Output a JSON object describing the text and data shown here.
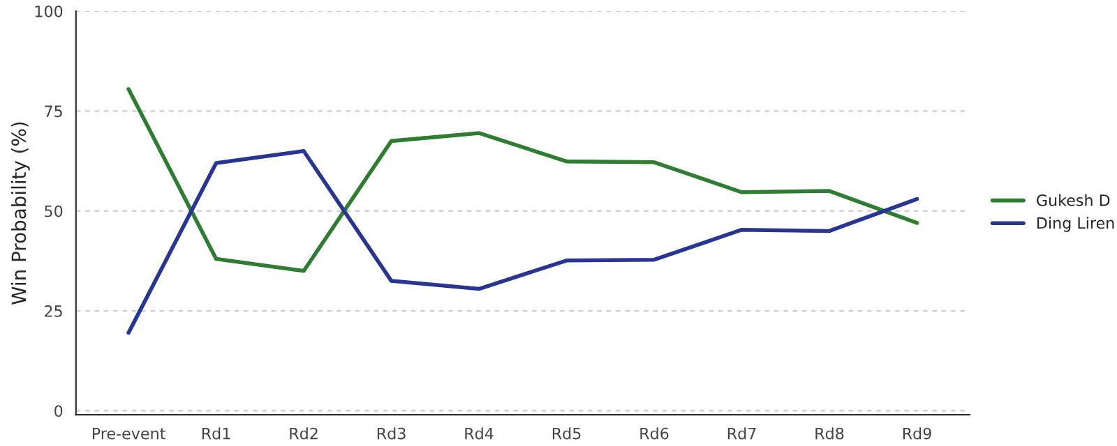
{
  "chart_data": {
    "type": "line",
    "ylabel": "Win Probability (%)",
    "categories": [
      "Pre-event",
      "Rd1",
      "Rd2",
      "Rd3",
      "Rd4",
      "Rd5",
      "Rd6",
      "Rd7",
      "Rd8",
      "Rd9"
    ],
    "series": [
      {
        "name": "Gukesh D",
        "color": "#2e7d32",
        "values": [
          80.5,
          38,
          35,
          67.5,
          69.5,
          62.4,
          62.2,
          54.7,
          55,
          47
        ]
      },
      {
        "name": "Ding Liren",
        "color": "#283593",
        "values": [
          19.5,
          62,
          65,
          32.5,
          30.5,
          37.6,
          37.8,
          45.3,
          45,
          53
        ]
      }
    ],
    "ylim": [
      -1,
      100
    ],
    "yticks": [
      0,
      25,
      50,
      75,
      100
    ],
    "grid": "y",
    "legend": "right",
    "marker": "none",
    "line_style": "solid"
  }
}
